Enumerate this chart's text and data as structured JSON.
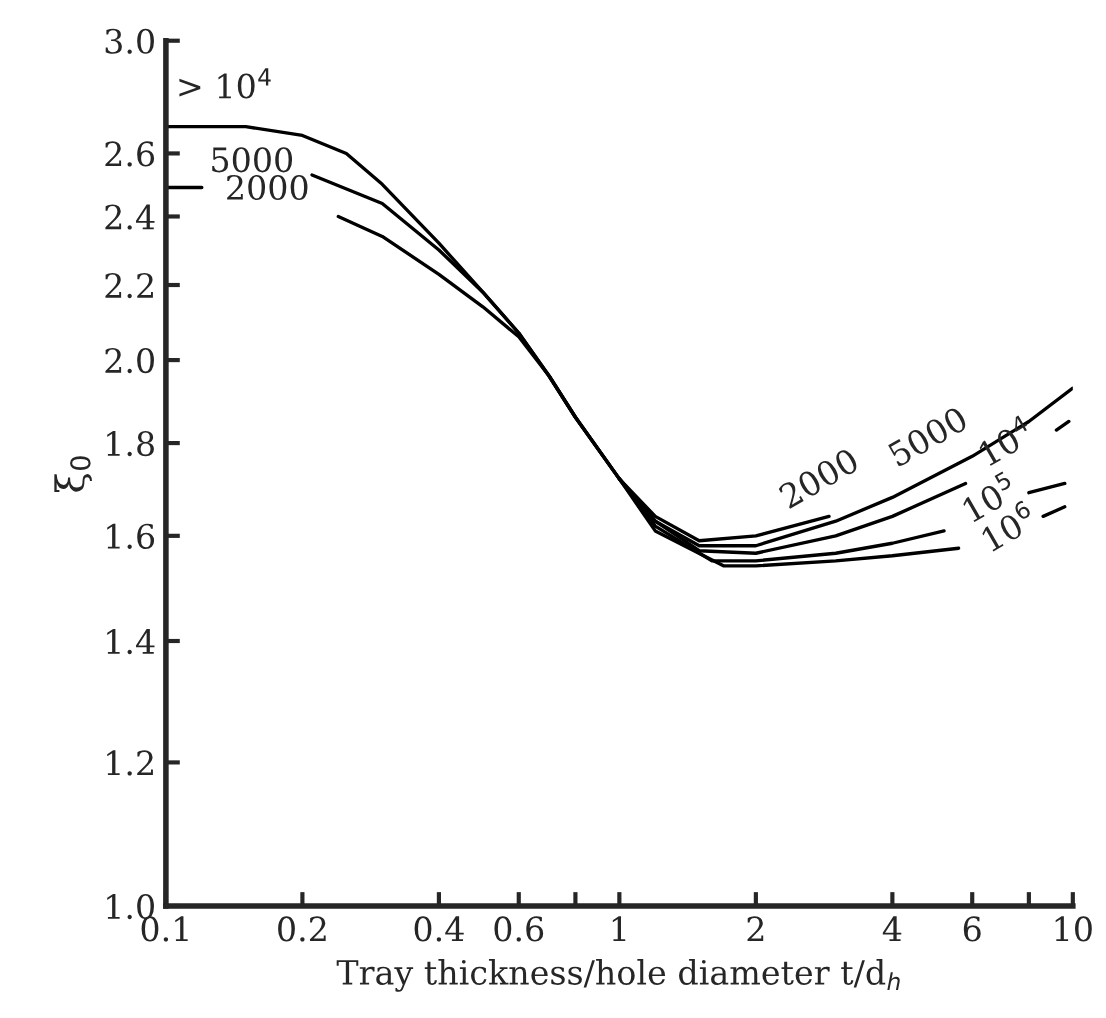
{
  "chart_data": {
    "type": "line",
    "xlabel": "Tray thickness/hole diameter t/d$_{h}$",
    "ylabel": "ξ$_{0}$",
    "log": "xy",
    "grid": false,
    "marker": "none",
    "line_style": "solid",
    "xlim": [
      0.1,
      10
    ],
    "ylim": [
      1.0,
      3.0
    ],
    "xticks": [
      0.1,
      0.2,
      0.4,
      0.6,
      {
        "value": 0.8,
        "label": null
      },
      1,
      2,
      4,
      6,
      {
        "value": 8,
        "label": null
      },
      10
    ],
    "yticks": [
      {
        "value": 1.0,
        "label": "1.0"
      },
      1.2,
      1.4,
      1.6,
      1.8,
      {
        "value": 2.0,
        "label": "2.0"
      },
      2.2,
      2.4,
      2.6,
      {
        "value": 3.0,
        "label": "3.0"
      }
    ],
    "series": [
      {
        "color": "#000000",
        "x": [
          0.1,
          0.12,
          0.17,
          0.24,
          0.3,
          0.4,
          0.5,
          0.6,
          0.7,
          0.8,
          1.0,
          1.2,
          1.5,
          2,
          2.9
        ],
        "values": [
          2.49,
          2.49,
          null,
          2.4,
          2.34,
          2.23,
          2.14,
          2.06,
          1.96,
          1.86,
          1.72,
          1.64,
          1.59,
          1.6,
          1.64
        ]
      },
      {
        "color": "#000000",
        "x": [
          0.21,
          0.3,
          0.4,
          0.5,
          0.6,
          0.7,
          0.8,
          1.0,
          1.2,
          1.5,
          2,
          3,
          4,
          6,
          8,
          10
        ],
        "values": [
          2.53,
          2.44,
          2.3,
          2.18,
          2.07,
          1.96,
          1.86,
          1.72,
          1.63,
          1.58,
          1.58,
          1.63,
          1.68,
          1.77,
          1.85,
          1.93
        ]
      },
      {
        "color": "#000000",
        "x": [
          0.1,
          0.15,
          0.2,
          0.25,
          0.3,
          0.4,
          0.5,
          0.6,
          0.7,
          0.8,
          1.0,
          1.2,
          1.5,
          2,
          3,
          4,
          5.8,
          7,
          9.2,
          9.8
        ],
        "values": [
          2.69,
          2.69,
          2.66,
          2.6,
          2.5,
          2.32,
          2.18,
          2.07,
          1.96,
          1.86,
          1.72,
          1.63,
          1.57,
          1.565,
          1.6,
          1.64,
          1.71,
          null,
          1.83,
          1.85
        ]
      },
      {
        "color": "#000000",
        "x": [
          1.0,
          1.2,
          1.6,
          2,
          3,
          4,
          5.2,
          6.5,
          8.0,
          9.6
        ],
        "values": [
          1.72,
          1.62,
          1.55,
          1.55,
          1.565,
          1.585,
          1.61,
          null,
          1.69,
          1.71
        ]
      },
      {
        "color": "#000000",
        "x": [
          1.0,
          1.2,
          1.7,
          2,
          3,
          4,
          5.6,
          7,
          8.6,
          9.6
        ],
        "values": [
          1.72,
          1.61,
          1.54,
          1.54,
          1.55,
          1.56,
          1.575,
          null,
          1.64,
          1.66
        ]
      }
    ],
    "annotations": [
      "> 10$^{4}$",
      "5000",
      "2000",
      "2000",
      "5000",
      "10$^{4}$",
      "10$^{5}$",
      "10$^{6}$"
    ]
  }
}
